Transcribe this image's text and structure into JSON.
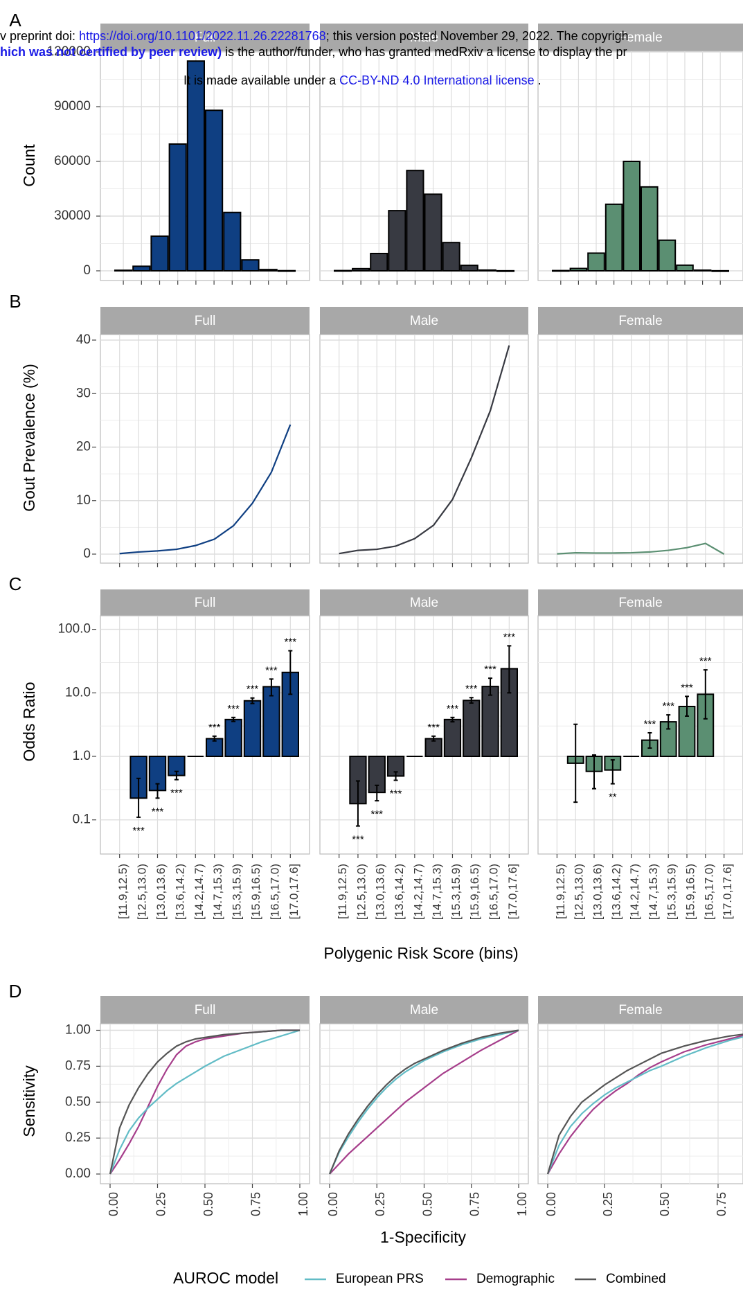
{
  "colors": {
    "full": "#0f3f82",
    "male": "#383a42",
    "female": "#5b8f72",
    "european_prs": "#62bcc6",
    "demographic": "#a63e8b",
    "combined": "#555555",
    "strip": "#a8a8a8",
    "grid": "#dddddd"
  },
  "banner": {
    "line1_pre": "v preprint doi: ",
    "doi_link": "https://doi.org/10.1101/2022.11.26.22281768",
    "line1_post": "; this version posted November 29, 2022. The copyrigh",
    "line2_bold": "hich was not certified by peer review)",
    "line2_rest": " is the author/funder, who has granted medRxiv a license to display the pr",
    "line3_pre": "It is made available under a ",
    "license_link": "CC-BY-ND 4.0 International license",
    "line3_post": " ."
  },
  "chart_data": [
    {
      "panel": "A",
      "type": "bar",
      "ylabel": "Count",
      "yticks": [
        "0",
        "30000",
        "60000",
        "90000",
        "120000"
      ],
      "ylim": [
        0,
        120000
      ],
      "facets": [
        "Full",
        "Male",
        "Female"
      ],
      "series": [
        {
          "facet": "Full",
          "values": [
            300,
            2500,
            19000,
            69500,
            115000,
            88000,
            32000,
            6000,
            700,
            100
          ]
        },
        {
          "facet": "Male",
          "values": [
            150,
            1200,
            9500,
            33000,
            55000,
            42000,
            15500,
            3000,
            400,
            50
          ]
        },
        {
          "facet": "Female",
          "values": [
            150,
            1300,
            9700,
            36500,
            60000,
            46000,
            16800,
            3100,
            350,
            50
          ]
        }
      ]
    },
    {
      "panel": "B",
      "type": "line",
      "ylabel": "Gout Prevalence (%)",
      "yticks": [
        "0",
        "10",
        "20",
        "30",
        "40"
      ],
      "ylim": [
        0,
        40
      ],
      "facets": [
        "Full",
        "Male",
        "Female"
      ],
      "series": [
        {
          "facet": "Full",
          "values": [
            0.1,
            0.4,
            0.6,
            0.9,
            1.6,
            2.8,
            5.3,
            9.5,
            15.3,
            24.2
          ]
        },
        {
          "facet": "Male",
          "values": [
            0.1,
            0.7,
            0.9,
            1.5,
            2.9,
            5.4,
            10.2,
            18.0,
            26.8,
            39.0
          ]
        },
        {
          "facet": "Female",
          "values": [
            0.05,
            0.25,
            0.2,
            0.2,
            0.25,
            0.4,
            0.7,
            1.2,
            2.0,
            0.0
          ]
        }
      ]
    },
    {
      "panel": "C",
      "type": "bar",
      "scale": "log",
      "baseline": 1,
      "ylabel": "Odds Ratio",
      "yticks": [
        "0.1",
        "1.0",
        "10.0",
        "100.0"
      ],
      "xlabel": "Polygenic Risk Score (bins)",
      "categories": [
        "[11.9,12.5)",
        "[12.5,13.0)",
        "[13.0,13.6)",
        "[13.6,14.2)",
        "[14.2,14.7)",
        "[14.7,15.3)",
        "[15.3,15.9)",
        "[15.9,16.5)",
        "[16.5,17.0)",
        "[17.0,17.6]"
      ],
      "facets": [
        "Full",
        "Male",
        "Female"
      ],
      "series": [
        {
          "facet": "Full",
          "or": [
            null,
            0.22,
            0.29,
            0.5,
            1.0,
            1.9,
            3.8,
            7.5,
            12.5,
            21
          ],
          "lo": [
            null,
            0.11,
            0.22,
            0.43,
            null,
            1.75,
            3.55,
            6.8,
            9.0,
            9.5
          ],
          "hi": [
            null,
            0.45,
            0.37,
            0.58,
            null,
            2.08,
            4.1,
            8.3,
            16.5,
            46
          ],
          "sig": [
            "",
            "***",
            "***",
            "***",
            "",
            "***",
            "***",
            "***",
            "***",
            "***"
          ]
        },
        {
          "facet": "Male",
          "or": [
            null,
            0.18,
            0.27,
            0.49,
            1.0,
            1.9,
            3.8,
            7.6,
            12.6,
            24
          ],
          "lo": [
            null,
            0.08,
            0.2,
            0.42,
            null,
            1.75,
            3.5,
            6.9,
            9.2,
            10
          ],
          "hi": [
            null,
            0.41,
            0.35,
            0.57,
            null,
            2.08,
            4.1,
            8.4,
            17,
            55
          ],
          "sig": [
            "",
            "***",
            "***",
            "***",
            "",
            "***",
            "***",
            "***",
            "***",
            "***"
          ]
        },
        {
          "facet": "Female",
          "or": [
            null,
            0.78,
            0.58,
            0.61,
            1.0,
            1.8,
            3.5,
            6.1,
            9.5,
            null
          ],
          "lo": [
            null,
            0.19,
            0.31,
            0.37,
            null,
            1.35,
            2.7,
            4.3,
            3.9,
            null
          ],
          "hi": [
            null,
            3.2,
            1.05,
            0.88,
            null,
            2.35,
            4.5,
            8.8,
            23,
            null
          ],
          "sig": [
            "",
            "",
            "",
            "**",
            "",
            "***",
            "***",
            "***",
            "***",
            ""
          ]
        }
      ]
    },
    {
      "panel": "D",
      "type": "line",
      "ylabel": "Sensitivity",
      "xlabel": "1-Specificity",
      "ticks": [
        "0.00",
        "0.25",
        "0.50",
        "0.75",
        "1.00"
      ],
      "xlim": [
        0,
        1
      ],
      "ylim": [
        0,
        1
      ],
      "facets": [
        "Full",
        "Male",
        "Female"
      ],
      "legend": {
        "title": "AUROC model",
        "position": "bottom",
        "entries": [
          "European PRS",
          "Demographic",
          "Combined"
        ]
      },
      "x": [
        0,
        0.05,
        0.1,
        0.15,
        0.2,
        0.25,
        0.3,
        0.35,
        0.4,
        0.45,
        0.5,
        0.6,
        0.7,
        0.8,
        0.9,
        1.0
      ],
      "series": [
        {
          "facet": "Full",
          "name": "European PRS",
          "values": [
            0,
            0.17,
            0.3,
            0.39,
            0.46,
            0.52,
            0.58,
            0.63,
            0.67,
            0.71,
            0.75,
            0.82,
            0.87,
            0.92,
            0.96,
            1.0
          ]
        },
        {
          "facet": "Full",
          "name": "Demographic",
          "values": [
            0,
            0.1,
            0.21,
            0.33,
            0.47,
            0.61,
            0.73,
            0.83,
            0.89,
            0.92,
            0.94,
            0.96,
            0.98,
            0.99,
            1.0,
            1.0
          ]
        },
        {
          "facet": "Full",
          "name": "Combined",
          "values": [
            0,
            0.32,
            0.48,
            0.6,
            0.7,
            0.78,
            0.84,
            0.89,
            0.92,
            0.94,
            0.95,
            0.97,
            0.98,
            0.99,
            1.0,
            1.0
          ]
        },
        {
          "facet": "Male",
          "name": "European PRS",
          "values": [
            0,
            0.15,
            0.26,
            0.36,
            0.45,
            0.53,
            0.6,
            0.66,
            0.71,
            0.75,
            0.79,
            0.85,
            0.9,
            0.94,
            0.97,
            1.0
          ]
        },
        {
          "facet": "Male",
          "name": "Demographic",
          "values": [
            0,
            0.07,
            0.14,
            0.2,
            0.26,
            0.32,
            0.38,
            0.44,
            0.5,
            0.55,
            0.6,
            0.7,
            0.78,
            0.86,
            0.93,
            1.0
          ]
        },
        {
          "facet": "Male",
          "name": "Combined",
          "values": [
            0,
            0.16,
            0.28,
            0.38,
            0.47,
            0.55,
            0.62,
            0.68,
            0.73,
            0.77,
            0.8,
            0.86,
            0.91,
            0.95,
            0.98,
            1.0
          ]
        },
        {
          "facet": "Female",
          "name": "European PRS",
          "values": [
            0,
            0.2,
            0.33,
            0.42,
            0.49,
            0.55,
            0.6,
            0.64,
            0.68,
            0.72,
            0.75,
            0.82,
            0.88,
            0.93,
            0.97,
            1.0
          ]
        },
        {
          "facet": "Female",
          "name": "Demographic",
          "values": [
            0,
            0.14,
            0.26,
            0.36,
            0.45,
            0.52,
            0.58,
            0.63,
            0.69,
            0.74,
            0.78,
            0.85,
            0.9,
            0.94,
            0.98,
            1.0
          ]
        },
        {
          "facet": "Female",
          "name": "Combined",
          "values": [
            0,
            0.27,
            0.4,
            0.5,
            0.56,
            0.62,
            0.67,
            0.72,
            0.76,
            0.8,
            0.84,
            0.89,
            0.93,
            0.96,
            0.98,
            1.0
          ]
        }
      ]
    }
  ]
}
